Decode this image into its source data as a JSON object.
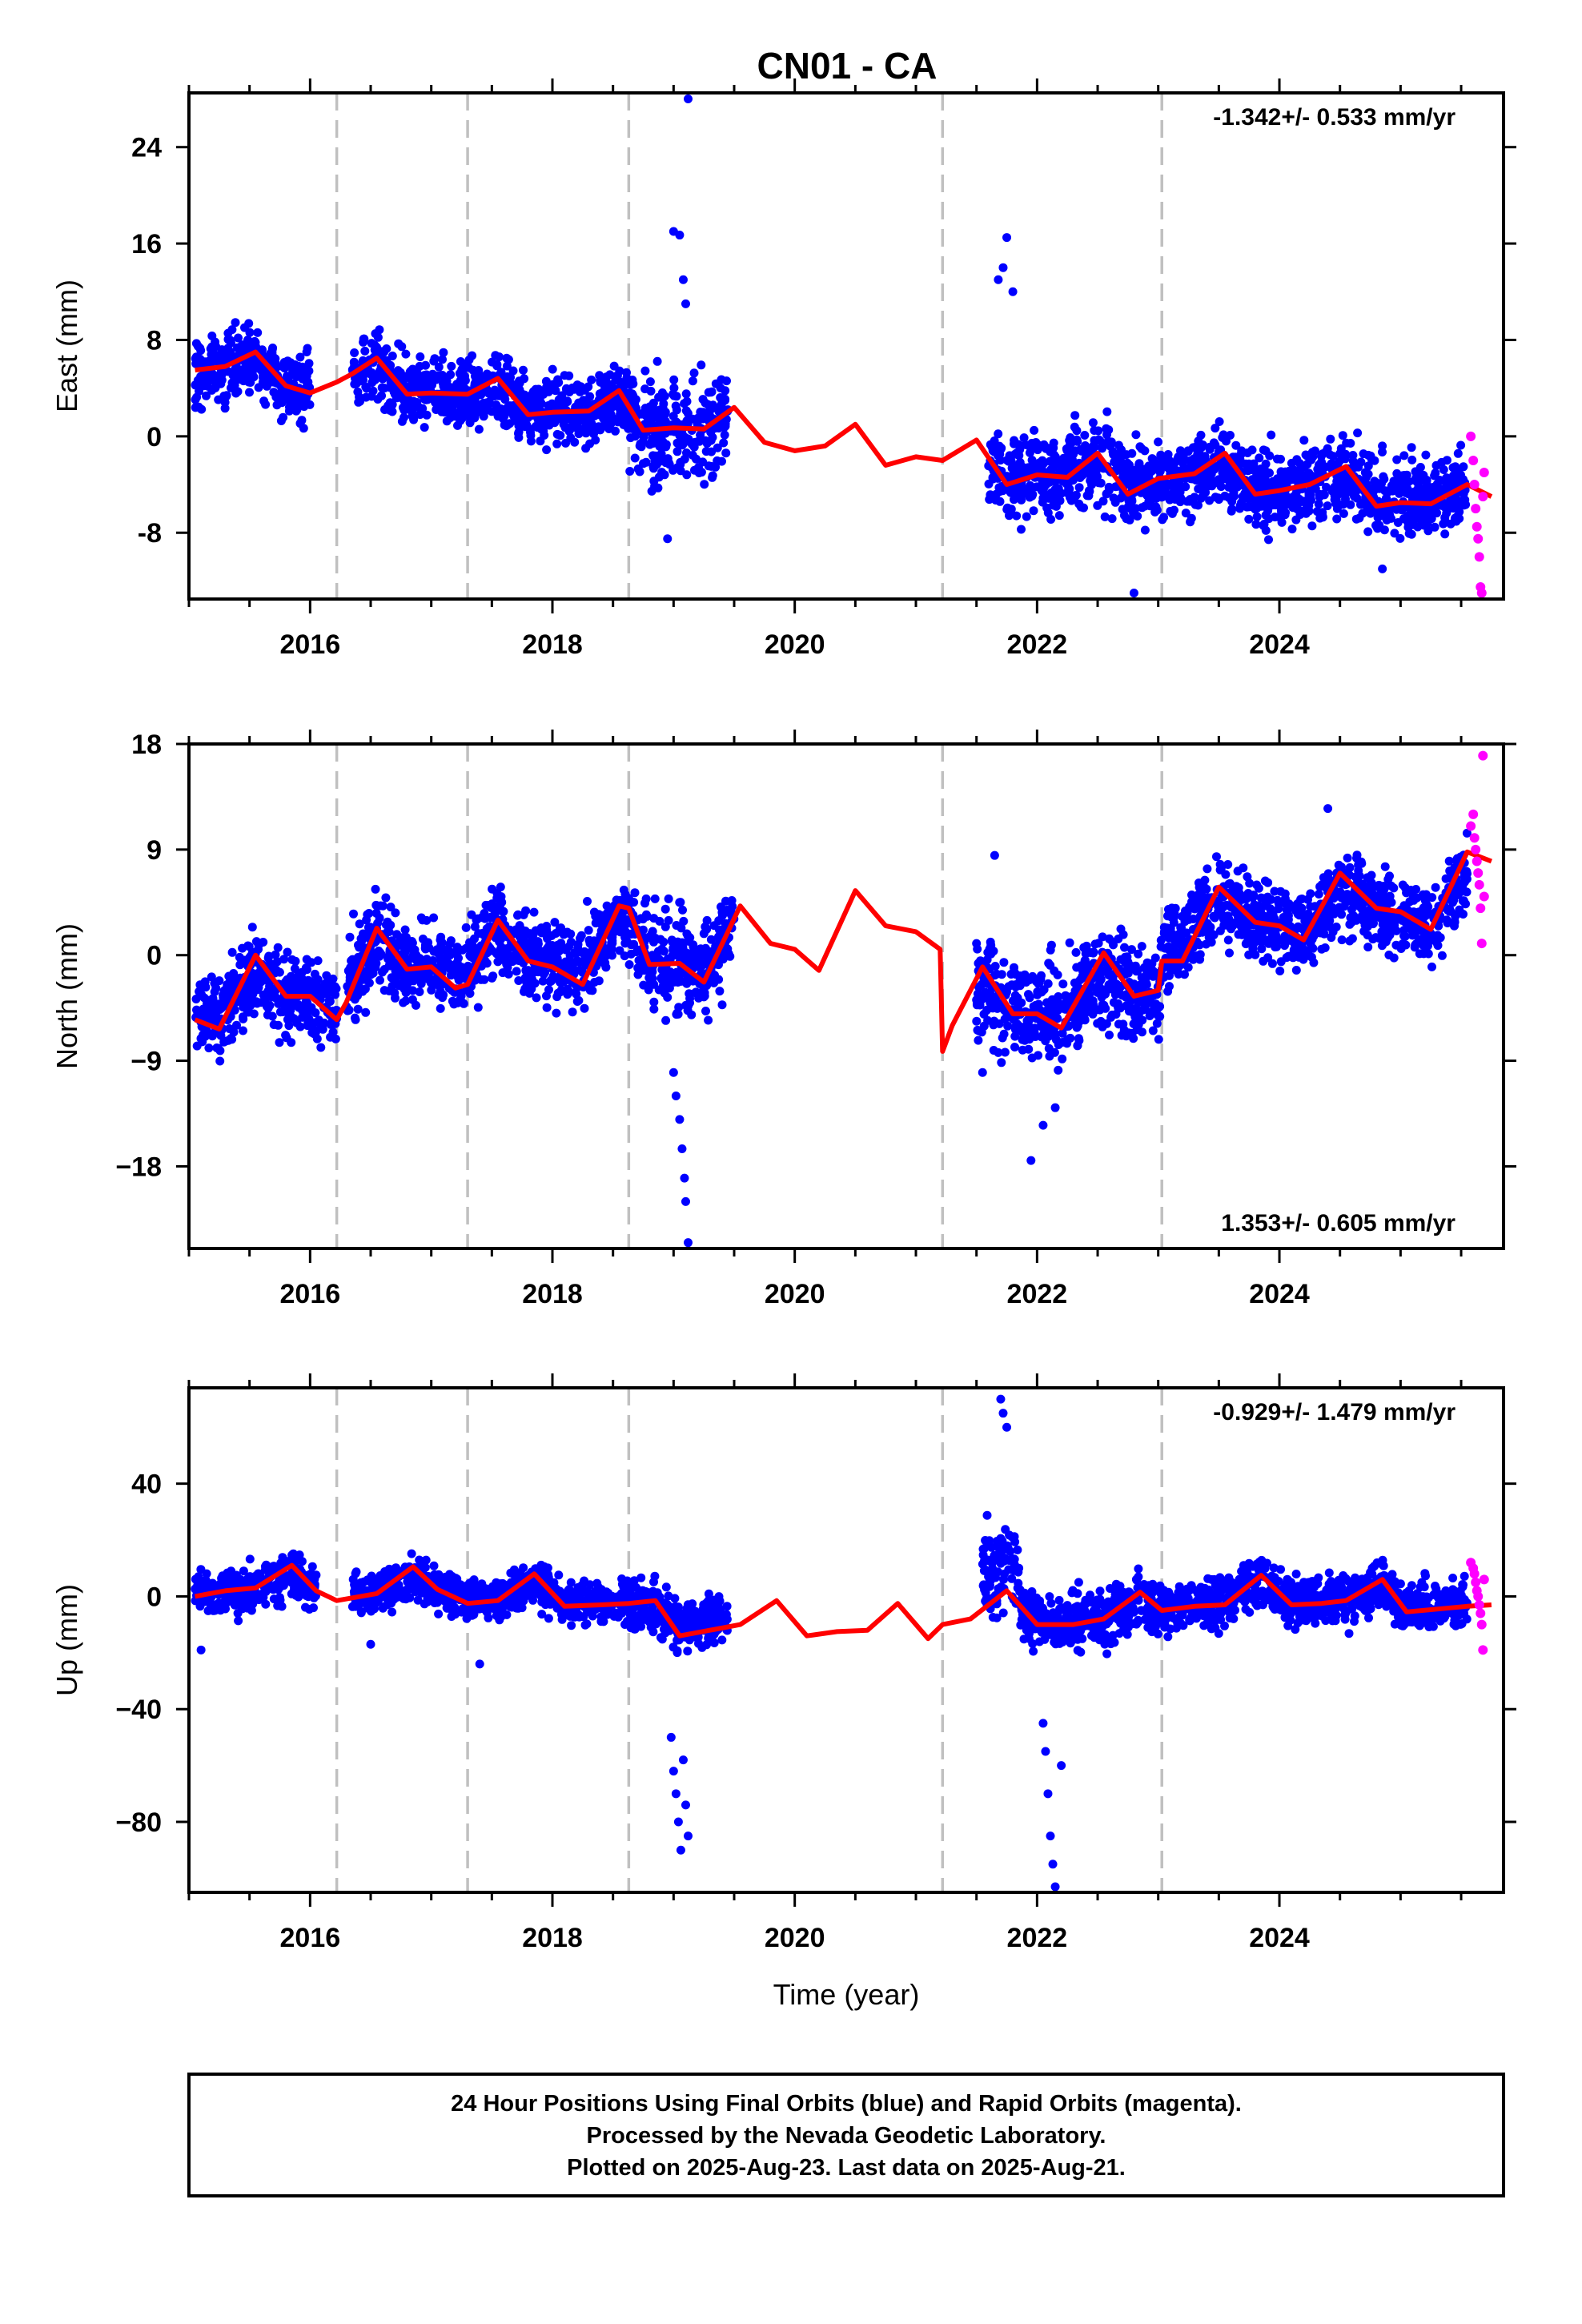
{
  "title": "CN01 - CA",
  "colors": {
    "final": "#0000ff",
    "rapid": "#ff00ff",
    "model": "#ff0000",
    "steps": "#c0c0c0"
  },
  "footer": {
    "line1": "24 Hour Positions Using Final Orbits (blue) and Rapid Orbits (magenta).",
    "line2": "Processed by the Nevada Geodetic Laboratory.",
    "line3": "Plotted on 2025-Aug-23. Last data on 2025-Aug-21."
  },
  "chart_data": [
    {
      "type": "scatter",
      "component": "east",
      "title": "CN01 - CA",
      "ylabel": "East (mm)",
      "xlabel": "",
      "xlim": [
        2015.0,
        2025.85
      ],
      "ylim": [
        -13.5,
        28.5
      ],
      "xticks": [
        "2016",
        "2018",
        "2020",
        "2022",
        "2024"
      ],
      "yticks": [
        "24",
        "16",
        "8",
        "0",
        "-8"
      ],
      "rate": "-1.342+/- 0.533 mm/yr",
      "rate_position": "top-right",
      "steps": [
        2016.22,
        2017.3,
        2018.63,
        2021.22,
        2023.03
      ],
      "model": {
        "x": [
          2015.05,
          2015.3,
          2015.55,
          2015.8,
          2016.0,
          2016.22,
          2016.35,
          2016.55,
          2016.8,
          2017.0,
          2017.3,
          2017.55,
          2017.8,
          2018.0,
          2018.3,
          2018.55,
          2018.75,
          2019.0,
          2019.25,
          2019.5,
          2019.75,
          2020.0,
          2020.25,
          2020.5,
          2020.75,
          2021.0,
          2021.22,
          2021.5,
          2021.75,
          2022.0,
          2022.25,
          2022.5,
          2022.75,
          2023.0,
          2023.3,
          2023.55,
          2023.8,
          2024.0,
          2024.25,
          2024.55,
          2024.8,
          2025.0,
          2025.25,
          2025.55,
          2025.75
        ],
        "y": [
          5.5,
          5.8,
          7.0,
          4.2,
          3.6,
          4.5,
          5.2,
          6.5,
          3.5,
          3.6,
          3.5,
          4.8,
          1.8,
          2.0,
          2.1,
          3.8,
          0.5,
          0.7,
          0.6,
          2.4,
          -0.5,
          -1.2,
          -0.8,
          1.0,
          -2.4,
          -1.7,
          -2.0,
          -0.3,
          -4.0,
          -3.2,
          -3.4,
          -1.4,
          -4.8,
          -3.5,
          -3.1,
          -1.4,
          -4.8,
          -4.5,
          -4.0,
          -2.5,
          -5.8,
          -5.5,
          -5.6,
          -4.0,
          -5.0
        ]
      },
      "final": {
        "segments": [
          {
            "start": 2015.05,
            "end": 2016.0,
            "mean": 5.0,
            "spread": 2.5
          },
          {
            "start": 2016.35,
            "end": 2017.3,
            "mean": 4.0,
            "spread": 2.5
          },
          {
            "start": 2017.3,
            "end": 2018.63,
            "mean": 2.5,
            "spread": 2.5
          },
          {
            "start": 2018.63,
            "end": 2019.45,
            "mean": 0.5,
            "spread": 3.5
          },
          {
            "start": 2021.6,
            "end": 2023.03,
            "mean": -3.0,
            "spread": 3.0
          },
          {
            "start": 2023.03,
            "end": 2025.55,
            "mean": -4.3,
            "spread": 2.8
          }
        ],
        "outliers": [
          [
            2019.0,
            17.0
          ],
          [
            2019.05,
            16.7
          ],
          [
            2019.08,
            13.0
          ],
          [
            2019.1,
            11.0
          ],
          [
            2019.12,
            28.0
          ],
          [
            2018.95,
            -8.5
          ],
          [
            2021.75,
            16.5
          ],
          [
            2021.72,
            14.0
          ],
          [
            2021.68,
            13.0
          ],
          [
            2021.8,
            12.0
          ],
          [
            2022.8,
            -13.0
          ],
          [
            2024.85,
            -11.0
          ]
        ]
      },
      "rapid": {
        "x": [
          2025.58,
          2025.6,
          2025.61,
          2025.62,
          2025.63,
          2025.64,
          2025.65,
          2025.66,
          2025.67,
          2025.68,
          2025.69
        ],
        "y": [
          0.0,
          -2.0,
          -4.0,
          -6.0,
          -7.5,
          -8.5,
          -10.0,
          -12.5,
          -13.0,
          -5.0,
          -3.0
        ]
      }
    },
    {
      "type": "scatter",
      "component": "north",
      "title": "",
      "ylabel": "North (mm)",
      "xlabel": "",
      "xlim": [
        2015.0,
        2025.85
      ],
      "ylim": [
        -25.0,
        18.0
      ],
      "xticks": [
        "2016",
        "2018",
        "2020",
        "2022",
        "2024"
      ],
      "yticks": [
        "18",
        "9",
        "0",
        "−9",
        "−18"
      ],
      "rate": "1.353+/- 0.605 mm/yr",
      "rate_position": "bottom-right",
      "steps": [
        2016.22,
        2017.3,
        2018.63,
        2021.22,
        2023.03
      ],
      "model": {
        "x": [
          2015.05,
          2015.25,
          2015.55,
          2015.8,
          2016.0,
          2016.22,
          2016.3,
          2016.55,
          2016.8,
          2017.0,
          2017.2,
          2017.3,
          2017.55,
          2017.8,
          2018.0,
          2018.25,
          2018.55,
          2018.63,
          2018.8,
          2019.05,
          2019.25,
          2019.55,
          2019.8,
          2020.0,
          2020.2,
          2020.5,
          2020.75,
          2021.0,
          2021.2,
          2021.22,
          2021.3,
          2021.55,
          2021.8,
          2022.0,
          2022.2,
          2022.55,
          2022.8,
          2023.0,
          2023.03,
          2023.2,
          2023.5,
          2023.8,
          2024.0,
          2024.2,
          2024.5,
          2024.8,
          2025.0,
          2025.25,
          2025.55,
          2025.75
        ],
        "y": [
          -5.5,
          -6.3,
          0.0,
          -3.5,
          -3.5,
          -5.5,
          -4.0,
          2.3,
          -1.2,
          -1.0,
          -2.8,
          -2.5,
          3.0,
          -0.5,
          -1.0,
          -2.5,
          4.2,
          4.0,
          -0.8,
          -0.7,
          -2.3,
          4.2,
          1.0,
          0.5,
          -1.3,
          5.5,
          2.5,
          2.0,
          0.5,
          -8.2,
          -6.0,
          -1.0,
          -5.0,
          -5.0,
          -6.2,
          0.2,
          -3.5,
          -3.0,
          -0.5,
          -0.5,
          5.8,
          2.8,
          2.5,
          1.3,
          7.0,
          4.0,
          3.7,
          2.2,
          8.8,
          8.0
        ]
      },
      "final": {
        "segments": [
          {
            "start": 2015.05,
            "end": 2016.22,
            "mean": -3.5,
            "spread": 3.0
          },
          {
            "start": 2016.3,
            "end": 2017.3,
            "mean": 0.0,
            "spread": 3.2
          },
          {
            "start": 2017.3,
            "end": 2018.63,
            "mean": 0.8,
            "spread": 3.2
          },
          {
            "start": 2018.63,
            "end": 2019.5,
            "mean": 0.5,
            "spread": 3.8
          },
          {
            "start": 2021.5,
            "end": 2023.03,
            "mean": -4.0,
            "spread": 3.8
          },
          {
            "start": 2023.03,
            "end": 2025.55,
            "mean": 3.3,
            "spread": 3.0
          }
        ],
        "outliers": [
          [
            2019.0,
            -10.0
          ],
          [
            2019.02,
            -12.0
          ],
          [
            2019.05,
            -14.0
          ],
          [
            2019.07,
            -16.5
          ],
          [
            2019.09,
            -19.0
          ],
          [
            2019.1,
            -21.0
          ],
          [
            2019.12,
            -24.5
          ],
          [
            2021.65,
            8.5
          ],
          [
            2021.95,
            -17.5
          ],
          [
            2022.05,
            -14.5
          ],
          [
            2022.15,
            -13.0
          ],
          [
            2021.55,
            -10.0
          ],
          [
            2024.4,
            12.5
          ]
        ]
      },
      "rapid": {
        "x": [
          2025.58,
          2025.6,
          2025.61,
          2025.62,
          2025.63,
          2025.64,
          2025.65,
          2025.66,
          2025.67,
          2025.68,
          2025.69
        ],
        "y": [
          11.0,
          12.0,
          10.0,
          9.0,
          8.0,
          7.0,
          6.0,
          4.0,
          1.0,
          17.0,
          5.0
        ]
      }
    },
    {
      "type": "scatter",
      "component": "up",
      "title": "",
      "ylabel": "Up (mm)",
      "xlabel": "Time (year)",
      "xlim": [
        2015.0,
        2025.85
      ],
      "ylim": [
        -105.0,
        74.0
      ],
      "xticks": [
        "2016",
        "2018",
        "2020",
        "2022",
        "2024"
      ],
      "yticks": [
        "40",
        "0",
        "−40",
        "−80"
      ],
      "rate": "-0.929+/- 1.479 mm/yr",
      "rate_position": "top-right",
      "steps": [
        2016.22,
        2017.3,
        2018.63,
        2021.22,
        2023.03
      ],
      "model": {
        "x": [
          2015.05,
          2015.3,
          2015.55,
          2015.85,
          2016.05,
          2016.22,
          2016.55,
          2016.85,
          2017.05,
          2017.3,
          2017.55,
          2017.85,
          2018.1,
          2018.4,
          2018.63,
          2018.85,
          2019.05,
          2019.3,
          2019.55,
          2019.85,
          2020.1,
          2020.35,
          2020.6,
          2020.85,
          2021.1,
          2021.22,
          2021.45,
          2021.75,
          2022.0,
          2022.3,
          2022.55,
          2022.85,
          2023.03,
          2023.3,
          2023.55,
          2023.85,
          2024.1,
          2024.35,
          2024.55,
          2024.85,
          2025.05,
          2025.3,
          2025.55,
          2025.75
        ],
        "y": [
          0.0,
          2.0,
          3.0,
          11.0,
          2.0,
          -1.5,
          1.0,
          10.5,
          2.5,
          -2.5,
          -1.5,
          8.0,
          -3.5,
          -3.0,
          -2.5,
          -1.5,
          -14.0,
          -12.0,
          -10.0,
          -1.5,
          -14.0,
          -12.5,
          -12.0,
          -2.5,
          -15.0,
          -10.0,
          -8.0,
          2.0,
          -10.0,
          -10.0,
          -8.0,
          1.5,
          -5.0,
          -3.5,
          -3.0,
          7.5,
          -3.0,
          -2.5,
          -1.5,
          6.0,
          -5.5,
          -4.5,
          -3.5,
          -3.0
        ]
      },
      "final": {
        "segments": [
          {
            "start": 2015.05,
            "end": 2016.05,
            "mean": 2.5,
            "spread": 7.0
          },
          {
            "start": 2016.35,
            "end": 2017.3,
            "mean": 2.0,
            "spread": 7.0
          },
          {
            "start": 2017.3,
            "end": 2018.63,
            "mean": 0.0,
            "spread": 6.5
          },
          {
            "start": 2018.63,
            "end": 2019.45,
            "mean": -5.0,
            "spread": 8.0
          },
          {
            "start": 2021.55,
            "end": 2021.85,
            "mean": 30.0,
            "spread": 14.0
          },
          {
            "start": 2021.85,
            "end": 2023.03,
            "mean": -6.0,
            "spread": 9.0
          },
          {
            "start": 2023.03,
            "end": 2025.55,
            "mean": 0.0,
            "spread": 7.5
          }
        ],
        "outliers": [
          [
            2018.98,
            -50.0
          ],
          [
            2019.0,
            -62.0
          ],
          [
            2019.02,
            -70.0
          ],
          [
            2019.04,
            -80.0
          ],
          [
            2019.06,
            -90.0
          ],
          [
            2019.08,
            -58.0
          ],
          [
            2019.1,
            -74.0
          ],
          [
            2019.12,
            -85.0
          ],
          [
            2021.7,
            70.0
          ],
          [
            2021.72,
            65.0
          ],
          [
            2021.75,
            60.0
          ],
          [
            2022.05,
            -45.0
          ],
          [
            2022.07,
            -55.0
          ],
          [
            2022.09,
            -70.0
          ],
          [
            2022.11,
            -85.0
          ],
          [
            2022.13,
            -95.0
          ],
          [
            2022.15,
            -103.0
          ],
          [
            2022.2,
            -60.0
          ],
          [
            2017.4,
            -24.0
          ],
          [
            2015.1,
            -19.0
          ],
          [
            2016.5,
            -17.0
          ]
        ]
      },
      "rapid": {
        "x": [
          2025.58,
          2025.6,
          2025.61,
          2025.62,
          2025.63,
          2025.64,
          2025.65,
          2025.66,
          2025.67,
          2025.68,
          2025.69
        ],
        "y": [
          12.0,
          10.0,
          8.0,
          5.0,
          2.0,
          0.0,
          -3.0,
          -6.0,
          -10.0,
          -19.0,
          6.0
        ]
      }
    }
  ]
}
